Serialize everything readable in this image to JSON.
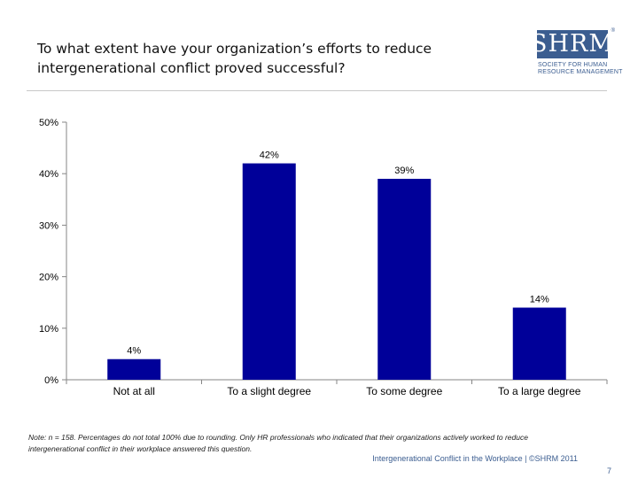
{
  "header": {
    "title_line1": "To what extent have your organization’s efforts to reduce",
    "title_line2": "intergenerational conflict proved successful?"
  },
  "logo": {
    "word": "SHRM",
    "reg": "®",
    "sub_line1": "SOCIETY FOR HUMAN",
    "sub_line2": "RESOURCE MANAGEMENT"
  },
  "chart_data": {
    "type": "bar",
    "title": "To what extent have your organization’s efforts to reduce intergenerational conflict proved successful?",
    "categories": [
      "Not at all",
      "To a slight degree",
      "To some degree",
      "To a large degree"
    ],
    "values": [
      4,
      42,
      39,
      14
    ],
    "data_labels": [
      "4%",
      "42%",
      "39%",
      "14%"
    ],
    "yticks": [
      0,
      10,
      20,
      30,
      40,
      50
    ],
    "ytick_labels": [
      "0%",
      "10%",
      "20%",
      "30%",
      "40%",
      "50%"
    ],
    "ylim": [
      0,
      50
    ],
    "xlabel": "",
    "ylabel": "",
    "bar_color": "#000099",
    "grid": false
  },
  "note": {
    "line1": "Note: n = 158. Percentages do not total 100% due to rounding. Only HR professionals who indicated that their organizations actively worked to reduce",
    "line2": "intergenerational conflict in their workplace answered this question."
  },
  "footer": {
    "source": "Intergenerational Conflict in the Workplace | ©SHRM 2011",
    "page": "7"
  },
  "colors": {
    "bar": "#000099",
    "brand": "#3b5d90"
  }
}
